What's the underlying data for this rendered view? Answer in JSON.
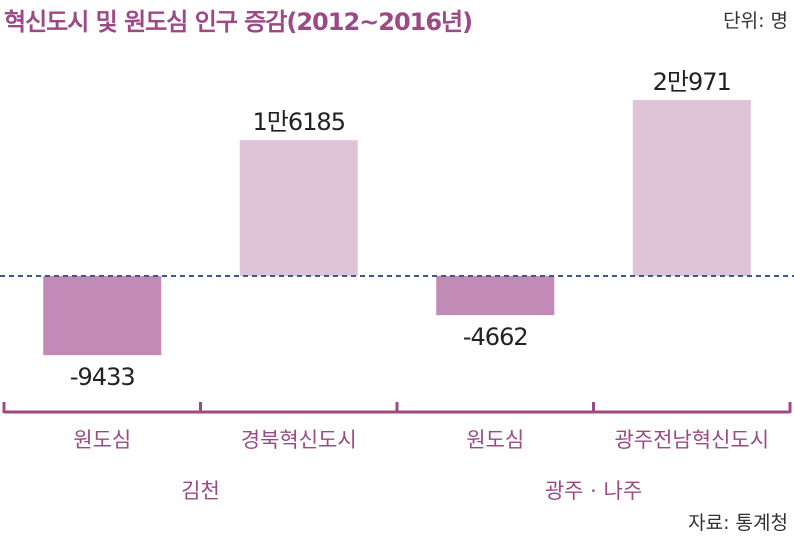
{
  "title": "혁신도시 및 원도심 인구 증감(2012~2016년)",
  "unit": "단위: 명",
  "source": "자료: 통계청",
  "colors": {
    "negative": "#c28ab6",
    "positive": "#dfc3d8",
    "accent": "#9b4a86",
    "baseline": "#3d5a8a"
  },
  "chart_data": {
    "type": "bar",
    "title": "혁신도시 및 원도심 인구 증감(2012~2016년)",
    "xlabel": "",
    "ylabel": "",
    "categories": [
      "원도심",
      "경북혁신도시",
      "원도심",
      "광주전남혁신도시"
    ],
    "groups": [
      {
        "label": "김천",
        "categories": [
          0,
          1
        ]
      },
      {
        "label": "광주 · 나주",
        "categories": [
          2,
          3
        ]
      }
    ],
    "values": [
      -9433,
      16185,
      -4662,
      20971
    ],
    "value_labels": [
      "-9433",
      "1만6185",
      "-4662",
      "2만971"
    ],
    "ylim": [
      -10000,
      21000
    ],
    "grid": false,
    "legend": "none"
  }
}
